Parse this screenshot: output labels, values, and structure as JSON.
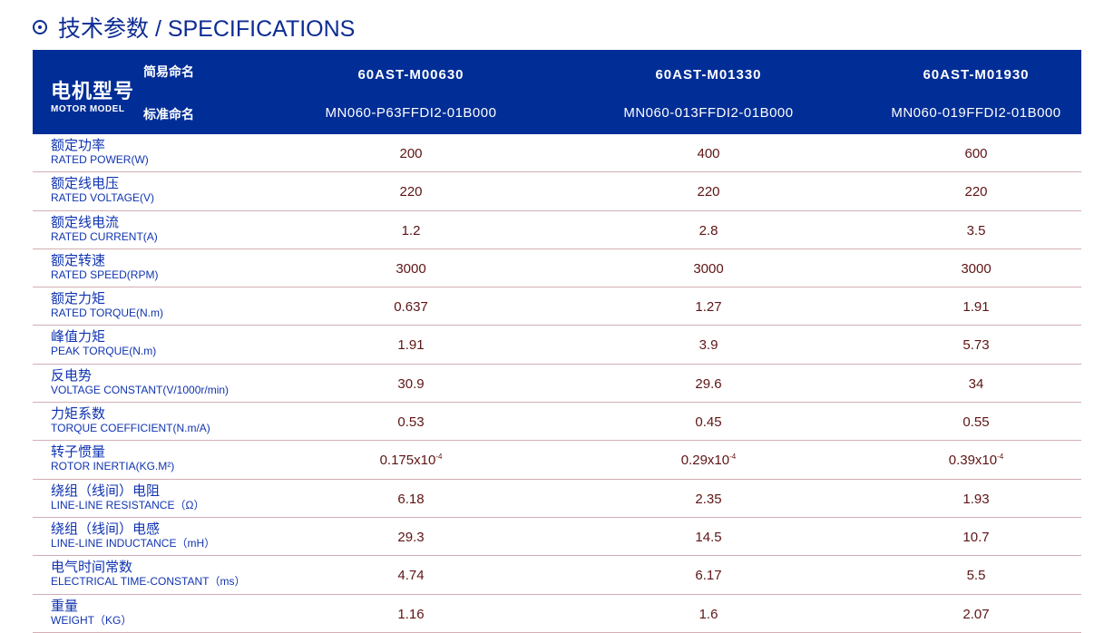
{
  "title": "技术参数 / SPECIFICATIONS",
  "header": {
    "label_cn": "电机型号",
    "label_en": "MOTOR MODEL",
    "short_name_label": "简易命名",
    "standard_name_label": "标准命名",
    "models": [
      {
        "short": "60AST-M00630",
        "standard": "MN060-P63FFDI2-01B000"
      },
      {
        "short": "60AST-M01330",
        "standard": "MN060-013FFDI2-01B000"
      },
      {
        "short": "60AST-M01930",
        "standard": "MN060-019FFDI2-01B000"
      }
    ]
  },
  "rows": [
    {
      "cn": "额定功率",
      "en": "RATED POWER(W)",
      "values": [
        "200",
        "400",
        "600"
      ]
    },
    {
      "cn": "额定线电压",
      "en": "RATED VOLTAGE(V)",
      "values": [
        "220",
        "220",
        "220"
      ]
    },
    {
      "cn": "额定线电流",
      "en": "RATED CURRENT(A)",
      "values": [
        "1.2",
        "2.8",
        "3.5"
      ]
    },
    {
      "cn": "额定转速",
      "en": "RATED SPEED(RPM)",
      "values": [
        "3000",
        "3000",
        "3000"
      ]
    },
    {
      "cn": "额定力矩",
      "en": "RATED TORQUE(N.m)",
      "values": [
        "0.637",
        "1.27",
        "1.91"
      ]
    },
    {
      "cn": "峰值力矩",
      "en": "PEAK TORQUE(N.m)",
      "values": [
        "1.91",
        "3.9",
        "5.73"
      ]
    },
    {
      "cn": "反电势",
      "en": "VOLTAGE CONSTANT(V/1000r/min)",
      "values": [
        "30.9",
        "29.6",
        "34"
      ]
    },
    {
      "cn": "力矩系数",
      "en": "TORQUE COEFFICIENT(N.m/A)",
      "values": [
        "0.53",
        "0.45",
        "0.55"
      ]
    },
    {
      "cn": "转子惯量",
      "en": "ROTOR INERTIA(KG.M²)",
      "values": [
        "0.175x10",
        "0.29x10",
        "0.39x10"
      ],
      "exponent": "-4"
    },
    {
      "cn": "绕组（线间）电阻",
      "en": "LINE-LINE RESISTANCE（Ω）",
      "values": [
        "6.18",
        "2.35",
        "1.93"
      ]
    },
    {
      "cn": "绕组（线间）电感",
      "en": "LINE-LINE INDUCTANCE（mH）",
      "values": [
        "29.3",
        "14.5",
        "10.7"
      ]
    },
    {
      "cn": "电气时间常数",
      "en": "ELECTRICAL TIME-CONSTANT（ms）",
      "values": [
        "4.74",
        "6.17",
        "5.5"
      ]
    },
    {
      "cn": "重量",
      "en": "WEIGHT（KG）",
      "values": [
        "1.16",
        "1.6",
        "2.07"
      ]
    }
  ],
  "colors": {
    "header_bg": "#002d96",
    "label": "#1034b0",
    "value": "#5e1414",
    "divider": "#d2aeb3"
  }
}
